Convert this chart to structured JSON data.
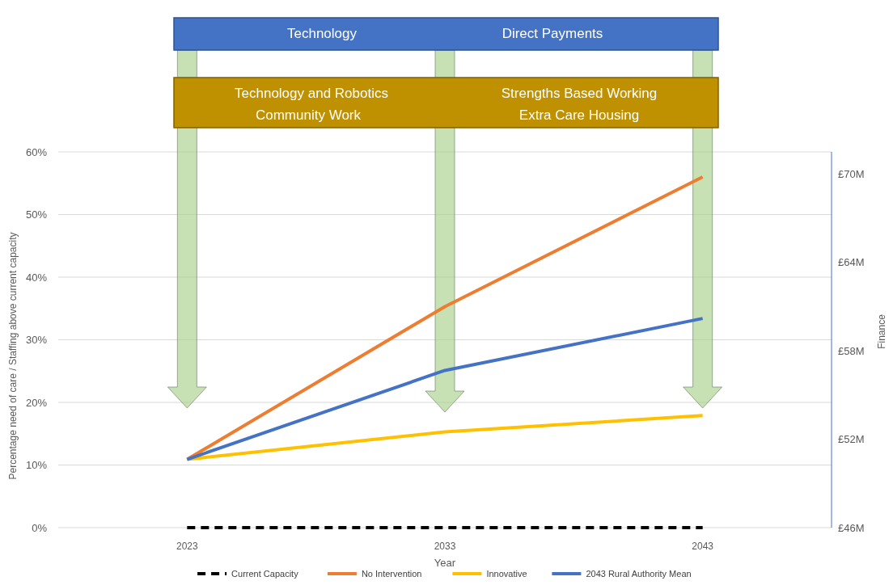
{
  "chart_data": {
    "type": "line",
    "xlabel": "Year",
    "ylabel": "Percentage need of care / Staffing above current capacity",
    "y2label": "Finance",
    "categories": [
      "2023",
      "2033",
      "2043"
    ],
    "series": [
      {
        "name": "Current Capacity",
        "color": "#000000",
        "line_style": "dashed",
        "values": [
          0,
          0,
          0
        ]
      },
      {
        "name": "No Intervention",
        "color": "#ed7d31",
        "values": [
          10.9,
          35.3,
          56
        ]
      },
      {
        "name": "Innovative",
        "color": "#ffc000",
        "values": [
          10.9,
          15.3,
          17.9
        ]
      },
      {
        "name": "2043 Rural Authority Mean",
        "color": "#4472c4",
        "values": [
          10.9,
          25.1,
          33.4
        ]
      }
    ],
    "ylim": [
      0,
      60
    ],
    "yticks": [
      {
        "value": 0,
        "label": "0%"
      },
      {
        "value": 10,
        "label": "10%"
      },
      {
        "value": 20,
        "label": "20%"
      },
      {
        "value": 30,
        "label": "30%"
      },
      {
        "value": 40,
        "label": "40%"
      },
      {
        "value": 50,
        "label": "50%"
      },
      {
        "value": 60,
        "label": "60%"
      }
    ],
    "y2lim": [
      46,
      71.5
    ],
    "y2ticks": [
      {
        "value": 46,
        "label": "£46M"
      },
      {
        "value": 52,
        "label": "£52M"
      },
      {
        "value": 58,
        "label": "£58M"
      },
      {
        "value": 64,
        "label": "£64M"
      },
      {
        "value": 70,
        "label": "£70M"
      }
    ],
    "grid": "y",
    "legend": "bottom",
    "line_style": "solid",
    "annotations": [
      "Technology",
      "Direct Payments",
      "Technology and Robotics",
      "Community Work",
      "Strengths Based Working",
      "Extra Care Housing"
    ]
  }
}
